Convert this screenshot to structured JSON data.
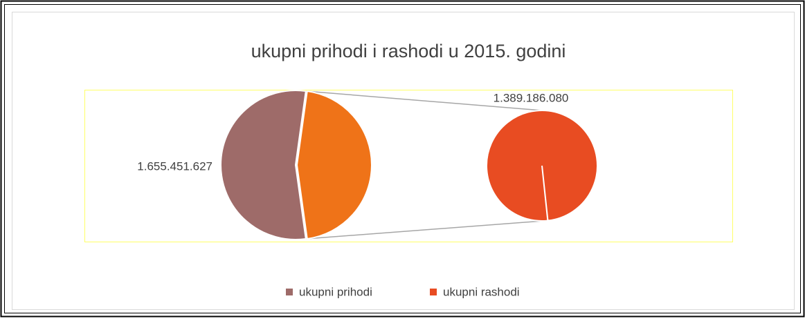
{
  "chart_data": {
    "type": "pie-of-pie",
    "title": "ukupni prihodi i rashodi u 2015. godini",
    "categories": [
      "ukupni prihodi",
      "ukupni rashodi"
    ],
    "values": [
      1655451627,
      1389186080
    ],
    "value_labels": [
      "1.655.451.627",
      "1.389.186.080"
    ],
    "colors": [
      "#9e6b69",
      "#e84c22"
    ],
    "other_color": "#ef7318",
    "legend": "bottom"
  }
}
